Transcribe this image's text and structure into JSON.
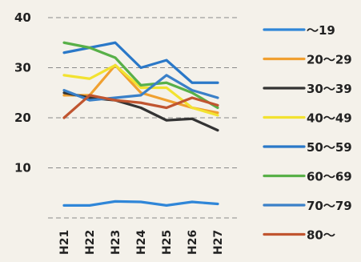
{
  "chart_data": {
    "type": "line",
    "categories": [
      "H21",
      "H22",
      "H23",
      "H24",
      "H25",
      "H26",
      "H27"
    ],
    "ylim": [
      0,
      40
    ],
    "yticks": [
      10,
      20,
      30,
      40
    ],
    "ytick_labels": [
      "10",
      "20",
      "30",
      "40"
    ],
    "grid": true,
    "legend_position": "right",
    "series": [
      {
        "name": "～19",
        "color": "#2f86d8",
        "values": [
          2.5,
          2.5,
          3.3,
          3.2,
          2.5,
          3.2,
          2.8
        ]
      },
      {
        "name": "20～29",
        "color": "#f0a030",
        "values": [
          24.5,
          24.5,
          30.5,
          25.0,
          23.5,
          22.0,
          21.0
        ]
      },
      {
        "name": "30～39",
        "color": "#333333",
        "values": [
          25.0,
          24.0,
          23.5,
          22.0,
          19.5,
          19.8,
          17.5
        ]
      },
      {
        "name": "40～49",
        "color": "#f2e230",
        "values": [
          28.5,
          27.8,
          30.5,
          26.0,
          26.0,
          22.0,
          20.5
        ]
      },
      {
        "name": "50～59",
        "color": "#2a78c8",
        "values": [
          33.0,
          34.0,
          35.0,
          30.0,
          31.5,
          27.0,
          27.0
        ]
      },
      {
        "name": "60～69",
        "color": "#58b048",
        "values": [
          35.0,
          34.0,
          32.0,
          26.5,
          27.0,
          25.0,
          22.0
        ]
      },
      {
        "name": "70～79",
        "color": "#3a80c8",
        "values": [
          25.5,
          23.5,
          24.0,
          24.5,
          28.5,
          25.5,
          24.0
        ]
      },
      {
        "name": "80～",
        "color": "#c05530",
        "values": [
          20.0,
          24.5,
          23.5,
          23.0,
          22.0,
          24.0,
          22.5
        ]
      }
    ]
  }
}
